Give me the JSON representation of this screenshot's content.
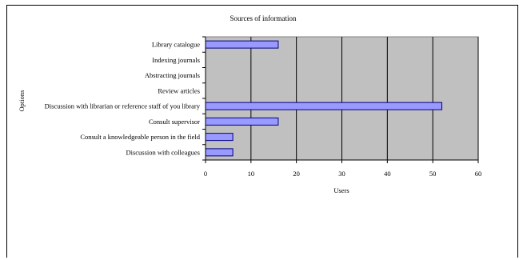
{
  "chart_data": {
    "type": "bar",
    "orientation": "horizontal",
    "title": "Sources of information",
    "xlabel": "Users",
    "ylabel": "Options",
    "categories": [
      "Library catalogue",
      "Indexing journals",
      "Abstracting journals",
      "Review articles",
      "Discussion with librarian or reference staff of you library",
      "Consult supervisor",
      "Consult a knowledgeable person in the field",
      "Discussion with colleagues"
    ],
    "values": [
      16,
      0,
      0,
      0,
      52,
      16,
      6,
      6
    ],
    "xlim": [
      0,
      60
    ],
    "xticks": [
      0,
      10,
      20,
      30,
      40,
      50,
      60
    ],
    "grid": true,
    "plot_background": "#c0c0c0",
    "bar_color": "#9999ff",
    "bar_edge_color": "#000080"
  }
}
